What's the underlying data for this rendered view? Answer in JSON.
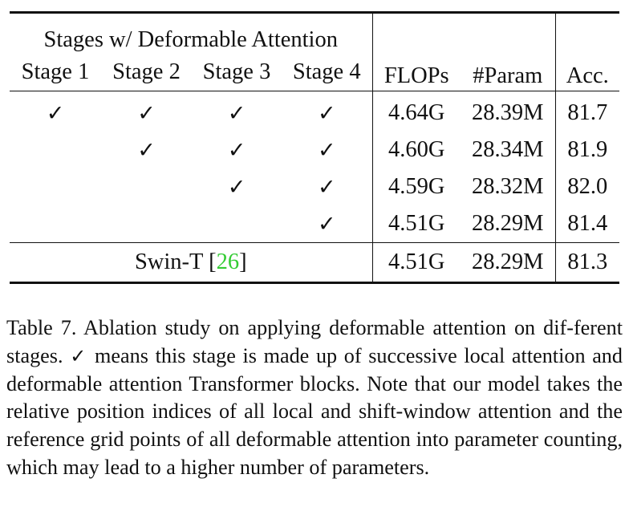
{
  "table": {
    "group_header": "Stages w/ Deformable Attention",
    "stage_headers": [
      "Stage 1",
      "Stage 2",
      "Stage 3",
      "Stage 4"
    ],
    "metric_headers": {
      "flops": "FLOPs",
      "params": "#Param",
      "acc": "Acc."
    },
    "check_glyph": "✓",
    "rows": [
      {
        "stages": [
          "✓",
          "✓",
          "✓",
          "✓"
        ],
        "flops": "4.64G",
        "params": "28.39M",
        "acc": "81.7"
      },
      {
        "stages": [
          "",
          "✓",
          "✓",
          "✓"
        ],
        "flops": "4.60G",
        "params": "28.34M",
        "acc": "81.9"
      },
      {
        "stages": [
          "",
          "",
          "✓",
          "✓"
        ],
        "flops": "4.59G",
        "params": "28.32M",
        "acc": "82.0"
      },
      {
        "stages": [
          "",
          "",
          "",
          "✓"
        ],
        "flops": "4.51G",
        "params": "28.29M",
        "acc": "81.4"
      }
    ],
    "baseline": {
      "name": "Swin-T",
      "cite_open": "[",
      "cite_number": "26",
      "cite_close": "]",
      "flops": "4.51G",
      "params": "28.29M",
      "acc": "81.3"
    }
  },
  "caption": {
    "part1": "Table 7. Ablation study on applying deformable attention on dif-ferent stages.",
    "check": "✓",
    "part2": "means this stage is made up of successive local attention and deformable attention Transformer blocks. Note that our model takes the relative position indices of all local and shift-window attention and the reference grid points of all deformable attention into parameter counting, which may lead to a higher number of parameters."
  },
  "colors": {
    "text": "#111111",
    "citation": "#33cc33",
    "background": "#ffffff"
  }
}
